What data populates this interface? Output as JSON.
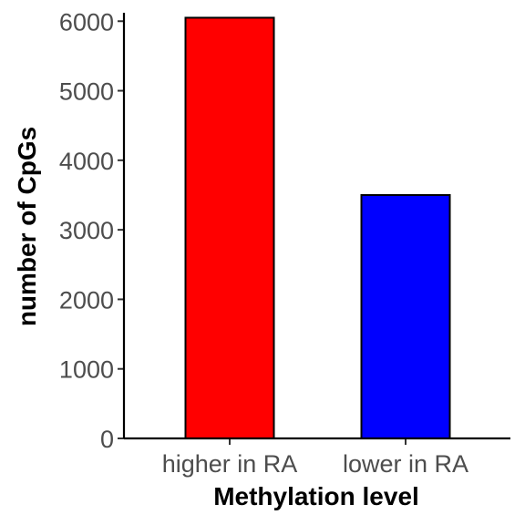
{
  "chart_data": {
    "type": "bar",
    "title": "",
    "xlabel": "Methylation level",
    "ylabel": "number of CpGs",
    "categories": [
      "higher in RA",
      "lower in RA"
    ],
    "values": [
      6050,
      3500
    ],
    "colors": [
      "#ff0000",
      "#0000ff"
    ],
    "ylim": [
      0,
      6200
    ],
    "yticks": [
      0,
      1000,
      2000,
      3000,
      4000,
      5000,
      6000
    ],
    "grid": false,
    "legend": "none"
  }
}
